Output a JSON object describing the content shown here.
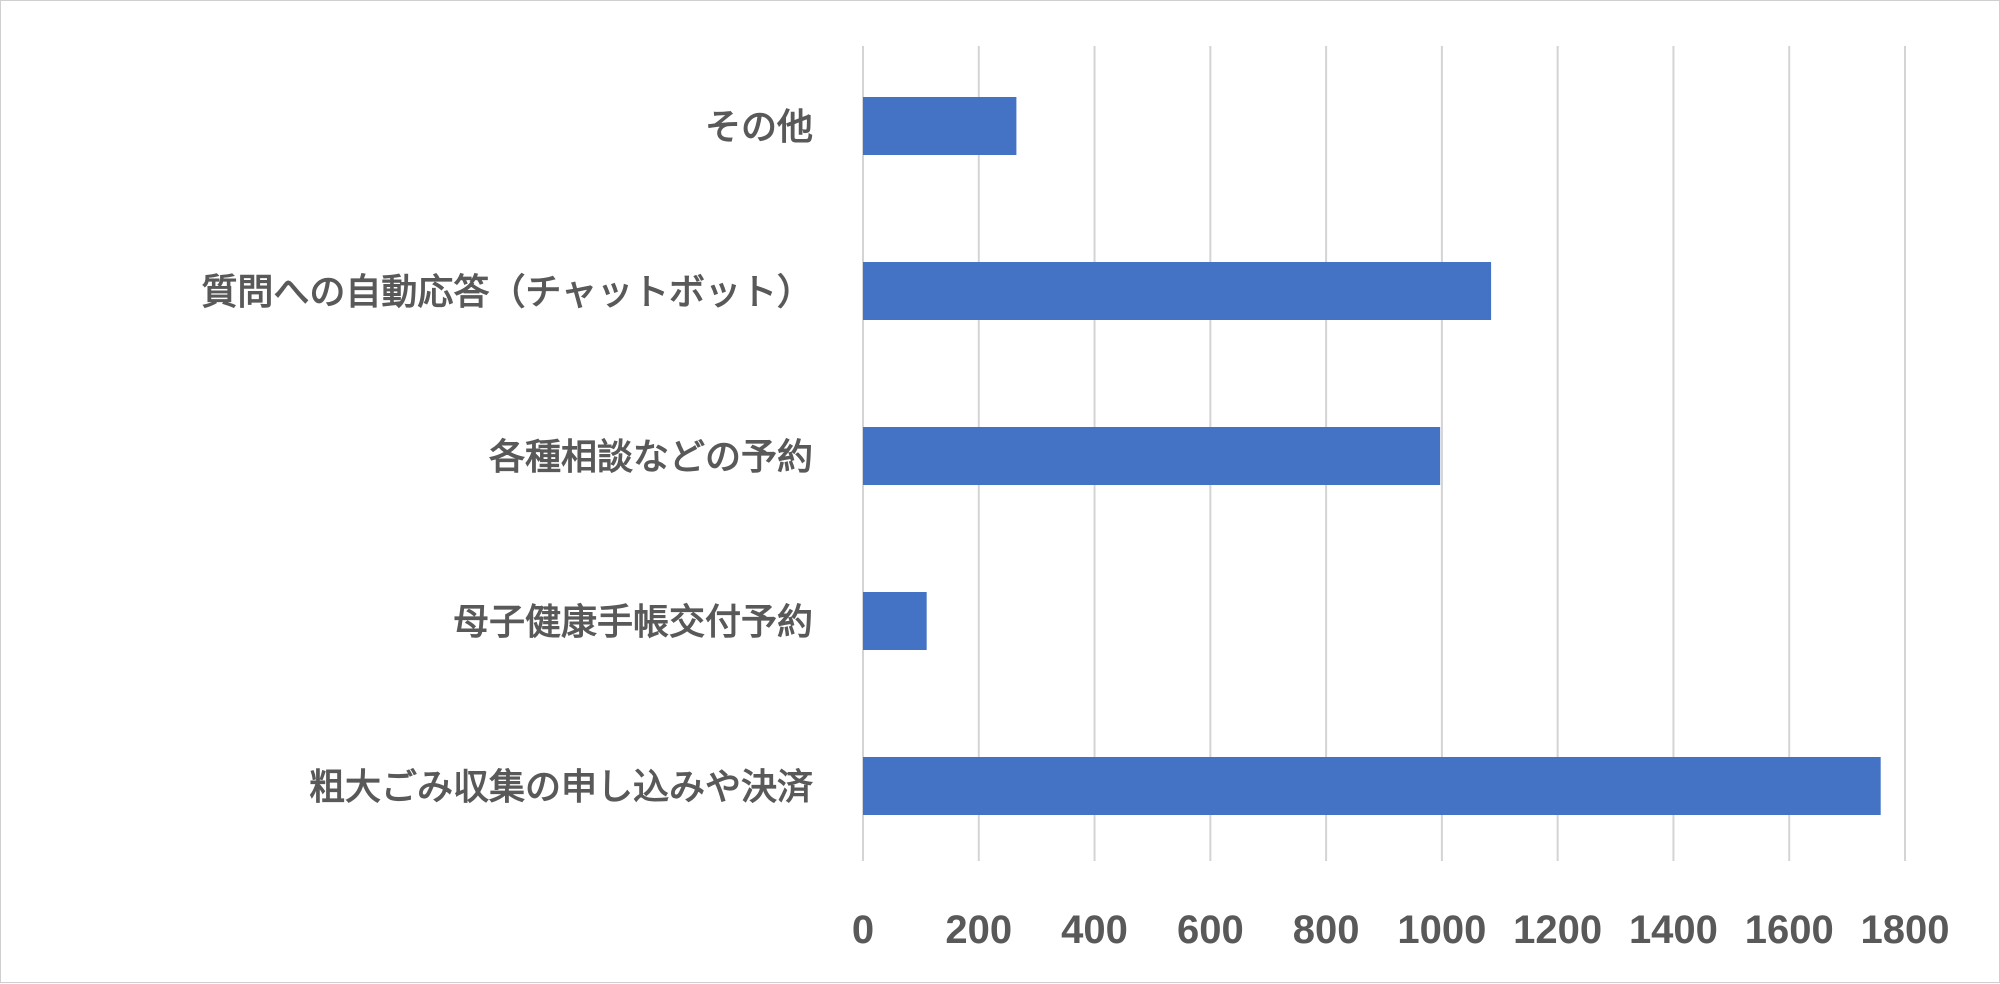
{
  "chart_data": {
    "type": "bar",
    "orientation": "horizontal",
    "categories": [
      "その他",
      "質問への自動応答（チャットボット）",
      "各種相談などの予約",
      "母子健康手帳交付予約",
      "粗大ごみ収集の申し込みや決済"
    ],
    "values": [
      265,
      1085,
      997,
      110,
      1758
    ],
    "xlim": [
      0,
      1800
    ],
    "xticks": [
      "0",
      "200",
      "400",
      "600",
      "800",
      "1000",
      "1200",
      "1400",
      "1600",
      "1800"
    ],
    "title": "",
    "xlabel": "",
    "ylabel": "",
    "grid": "vertical",
    "legend": "none",
    "bar_color": "#4472c4"
  }
}
